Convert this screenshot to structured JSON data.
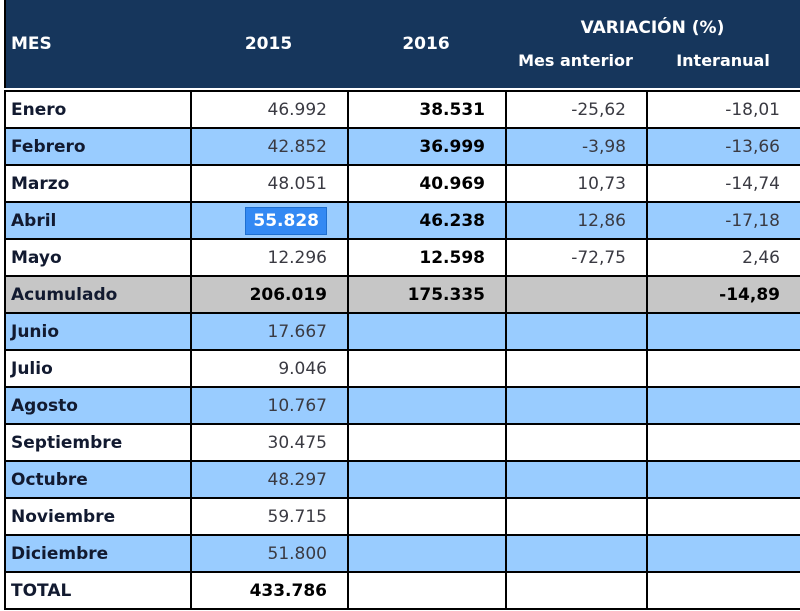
{
  "header": {
    "col_mes": "MES",
    "col_2015": "2015",
    "col_2016": "2016",
    "variacion_group": "VARIACIÓN (%)",
    "col_mes_anterior": "Mes anterior",
    "col_interanual": "Interanual"
  },
  "rows": [
    {
      "label": "Enero",
      "v2015": "46.992",
      "v2016": "38.531",
      "mes_anterior": "-25,62",
      "interanual": "-18,01",
      "style": "white"
    },
    {
      "label": "Febrero",
      "v2015": "42.852",
      "v2016": "36.999",
      "mes_anterior": "-3,98",
      "interanual": "-13,66",
      "style": "blue"
    },
    {
      "label": "Marzo",
      "v2015": "48.051",
      "v2016": "40.969",
      "mes_anterior": "10,73",
      "interanual": "-14,74",
      "style": "white"
    },
    {
      "label": "Abril",
      "v2015": "55.828",
      "v2016": "46.238",
      "mes_anterior": "12,86",
      "interanual": "-17,18",
      "style": "blue",
      "selected_cell": "v2015"
    },
    {
      "label": "Mayo",
      "v2015": "12.296",
      "v2016": "12.598",
      "mes_anterior": "-72,75",
      "interanual": "2,46",
      "style": "white"
    },
    {
      "label": "Acumulado",
      "v2015": "206.019",
      "v2016": "175.335",
      "mes_anterior": "",
      "interanual": "-14,89",
      "style": "gray bold"
    },
    {
      "label": "Junio",
      "v2015": "17.667",
      "v2016": "",
      "mes_anterior": "",
      "interanual": "",
      "style": "blue"
    },
    {
      "label": "Julio",
      "v2015": "9.046",
      "v2016": "",
      "mes_anterior": "",
      "interanual": "",
      "style": "white"
    },
    {
      "label": "Agosto",
      "v2015": "10.767",
      "v2016": "",
      "mes_anterior": "",
      "interanual": "",
      "style": "blue"
    },
    {
      "label": "Septiembre",
      "v2015": "30.475",
      "v2016": "",
      "mes_anterior": "",
      "interanual": "",
      "style": "white"
    },
    {
      "label": "Octubre",
      "v2015": "48.297",
      "v2016": "",
      "mes_anterior": "",
      "interanual": "",
      "style": "blue"
    },
    {
      "label": "Noviembre",
      "v2015": "59.715",
      "v2016": "",
      "mes_anterior": "",
      "interanual": "",
      "style": "white"
    },
    {
      "label": "Diciembre",
      "v2015": "51.800",
      "v2016": "",
      "mes_anterior": "",
      "interanual": "",
      "style": "blue"
    },
    {
      "label": "TOTAL",
      "v2015": "433.786",
      "v2016": "",
      "mes_anterior": "",
      "interanual": "",
      "style": "white bold"
    }
  ],
  "selection": {
    "row_label": "Abril",
    "column": "2015",
    "value": "55.828"
  },
  "colors": {
    "header_bg": "#16365C",
    "header_text": "#FFFFFF",
    "row_blue": "#99CCFF",
    "row_gray": "#C6C6C6",
    "row_white": "#FFFFFF",
    "border": "#000000",
    "selection_bg": "#3389F3",
    "selection_text": "#FFFFFF",
    "label_text": "#121A30",
    "number_text": "#3A3A42",
    "bold_number_text": "#000000"
  }
}
